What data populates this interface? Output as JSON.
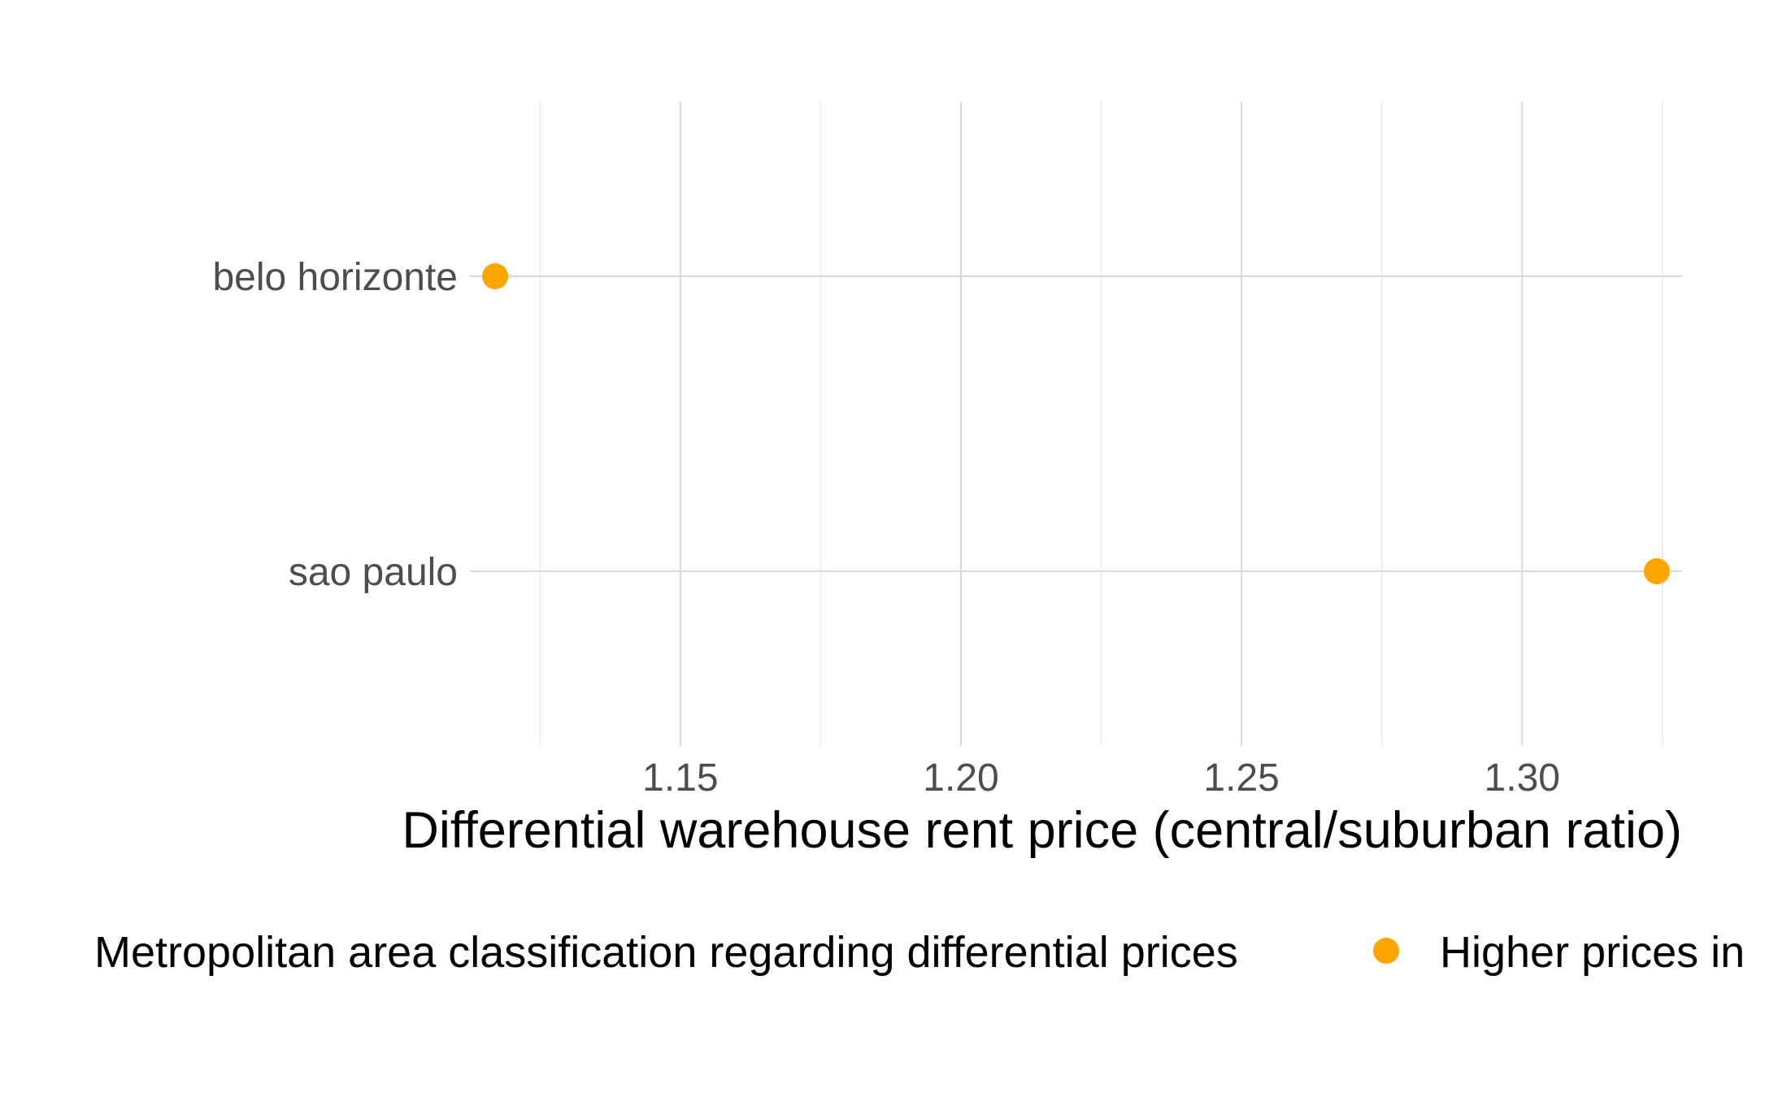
{
  "chart_data": {
    "type": "scatter",
    "categories": [
      "belo horizonte",
      "sao paulo"
    ],
    "series": [
      {
        "name": "Higher prices in",
        "color": "#FFA500",
        "values": [
          1.117,
          1.324
        ]
      }
    ],
    "x_ticks": [
      "1.15",
      "1.20",
      "1.25",
      "1.30"
    ],
    "x_tick_values": [
      1.15,
      1.2,
      1.25,
      1.3
    ],
    "xlim": [
      1.1125,
      1.3285
    ],
    "xlabel": "Differential warehouse rent price (central/suburban ratio)",
    "ylabel": "",
    "grid": true,
    "legend": {
      "position": "bottom",
      "title": "Metropolitan area classification regarding differential prices",
      "entries": [
        "Higher prices in"
      ]
    }
  }
}
